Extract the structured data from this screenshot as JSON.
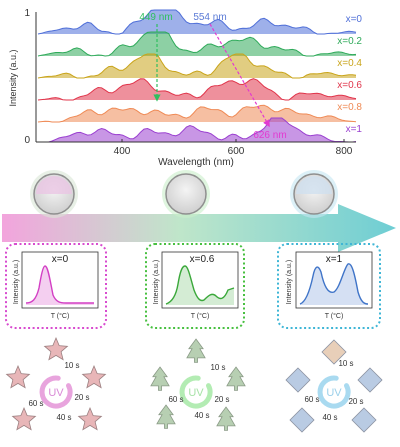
{
  "spectra_panel": {
    "ylabel": "Intensity (a.u.)",
    "xlabel": "Wavelength (nm)",
    "y_tick_top": "1",
    "y_tick_bottom": "0",
    "x_ticks": [
      "400",
      "600",
      "800"
    ],
    "annotation_left": "449 nm",
    "annotation_right_top": "554 nm",
    "annotation_right_bottom": "626 nm",
    "series": [
      {
        "label": "x=0",
        "color": "#4f6fd8"
      },
      {
        "label": "x=0.2",
        "color": "#2faa5a"
      },
      {
        "label": "x=0.4",
        "color": "#c9a41a"
      },
      {
        "label": "x=0.6",
        "color": "#e0344a"
      },
      {
        "label": "x=0.8",
        "color": "#ef8a55"
      },
      {
        "label": "x=1",
        "color": "#9a3fd0"
      }
    ]
  },
  "composition_panels": [
    {
      "title": "x=0",
      "ylabel": "Intensity (a.u.)",
      "xlabel": "T (°C)",
      "color": "#d33fc4"
    },
    {
      "title": "x=0.6",
      "ylabel": "Intensity (a.u.)",
      "xlabel": "T (°C)",
      "color": "#3aa83a"
    },
    {
      "title": "x=1",
      "ylabel": "Intensity (a.u.)",
      "xlabel": "T (°C)",
      "color": "#3f74c8"
    }
  ],
  "cycles": [
    {
      "center_label": "UV",
      "times": [
        "10 s",
        "20 s",
        "40 s",
        "60 s"
      ],
      "shape": "star",
      "color": "#e8b6b8"
    },
    {
      "center_label": "UV",
      "times": [
        "10 s",
        "20 s",
        "40 s",
        "60 s"
      ],
      "shape": "tree",
      "color": "#b7cfb2"
    },
    {
      "center_label": "UV",
      "times": [
        "10 s",
        "20 s",
        "40 s",
        "60 s"
      ],
      "shape": "diamond",
      "color": "#b9cbe3"
    }
  ]
}
